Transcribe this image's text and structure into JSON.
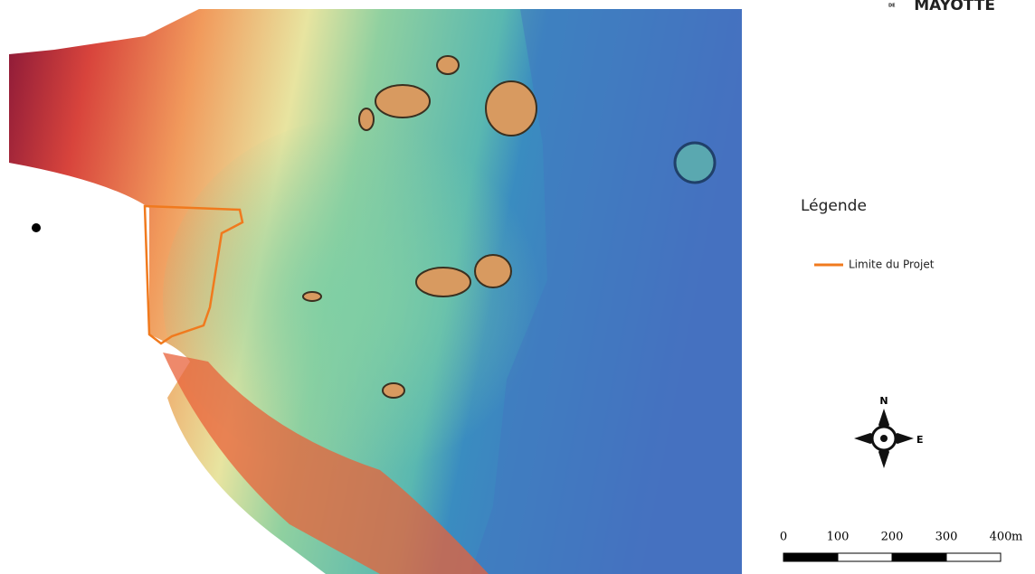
{
  "title": {
    "prefix": "DE",
    "text": "MAYOTTE"
  },
  "legend": {
    "title": "Légende",
    "items": [
      {
        "label": "Limite du Projet",
        "color": "#f07a1e"
      }
    ]
  },
  "compass": {
    "north": "N",
    "east": "E"
  },
  "scale_bar": {
    "labels": [
      "0",
      "100",
      "200",
      "300",
      "400"
    ],
    "unit": "m"
  }
}
